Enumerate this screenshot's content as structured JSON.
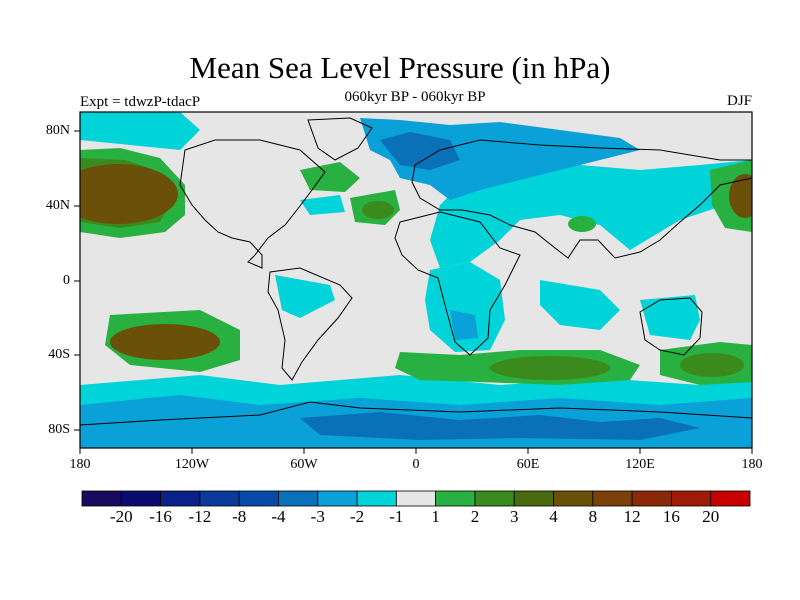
{
  "title": "Mean Sea Level Pressure (in hPa)",
  "subtitle": "060kyr BP - 060kyr BP",
  "experiment_label": "Expt = tdwzP-tdacP",
  "season_label": "DJF",
  "lat_labels": [
    "80N",
    "40N",
    "0",
    "40S",
    "80S"
  ],
  "lon_labels": [
    "180",
    "120W",
    "60W",
    "0",
    "60E",
    "120E",
    "180"
  ],
  "colorbar": {
    "colors": [
      "#1a0a5e",
      "#0a0d6e",
      "#0a2288",
      "#0a3a9a",
      "#084aa8",
      "#0a70b8",
      "#0aa0d8",
      "#00d4d8",
      "#e6e6e6",
      "#28b040",
      "#3a8a1e",
      "#4a6a10",
      "#6a5008",
      "#7a4208",
      "#8a2a08",
      "#a01a08",
      "#c80000"
    ],
    "labels": [
      "-20",
      "-16",
      "-12",
      "-8",
      "-4",
      "-3",
      "-2",
      "-1",
      "1",
      "2",
      "3",
      "4",
      "8",
      "12",
      "16",
      "20"
    ]
  },
  "map_colors": {
    "neutral": "#e6e6e6",
    "neg1": "#00d4d8",
    "neg2": "#0aa0d8",
    "neg3": "#0a70b8",
    "neg4": "#084aa8",
    "pos1": "#28b040",
    "pos2": "#3a8a1e",
    "pos3": "#4a6a10",
    "pos4": "#6a5008"
  }
}
